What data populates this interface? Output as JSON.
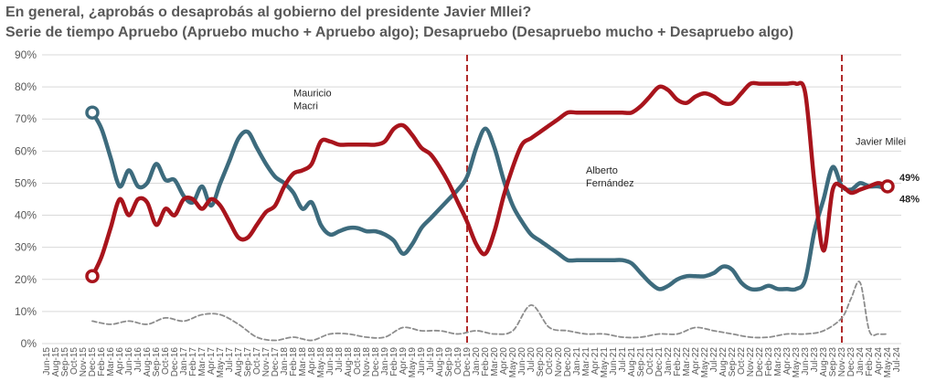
{
  "title": "En general, ¿aprobás o desaprobás al gobierno del presidente Javier MIlei?",
  "subtitle": "Serie de tiempo Apruebo (Apruebo mucho + Apruebo algo); Desapruebo (Desapruebo mucho + Desapruebo algo)",
  "colors": {
    "apruebo": "#3d6b7d",
    "desapruebo": "#a8141c",
    "nsnc": "#8c8c8c",
    "marker": "#a8141c"
  },
  "chart_data": {
    "type": "line",
    "ylim": [
      0,
      90
    ],
    "yticks": [
      "0%",
      "10%",
      "20%",
      "30%",
      "40%",
      "50%",
      "60%",
      "70%",
      "80%",
      "90%"
    ],
    "x_labels": [
      "Jun-15",
      "Aug-15",
      "Sep-15",
      "Oct-15",
      "Nov-15",
      "Dec-15",
      "Feb-16",
      "Mar-16",
      "Apr-16",
      "Jun-16",
      "Jul-16",
      "Aug-16",
      "Sep-16",
      "Oct-16",
      "Dec-16",
      "Jan-17",
      "Feb-17",
      "Mar-17",
      "Apr-17",
      "May-17",
      "Jul-17",
      "Aug-17",
      "Sep-17",
      "Oct-17",
      "Nov-17",
      "Dec-17",
      "Jan-18",
      "Feb-18",
      "Mar-18",
      "Apr-18",
      "May-18",
      "Jun-18",
      "Jul-18",
      "Aug-18",
      "Oct-18",
      "Nov-18",
      "Dec-18",
      "Jan-19",
      "Feb-19",
      "Apr-19",
      "May-19",
      "Jun-19",
      "Jul-19",
      "Aug-19",
      "Sep-19",
      "Oct-19",
      "Dec-19",
      "Jan-20",
      "Feb-20",
      "Mar-20",
      "Apr-20",
      "May-20",
      "Jun-20",
      "Jul-20",
      "Sep-20",
      "Oct-20",
      "Nov-20",
      "Dec-20",
      "Jan-21",
      "Mar-21",
      "Apr-21",
      "May-21",
      "Jun-21",
      "Jul-21",
      "Aug-21",
      "Sep-21",
      "Oct-21",
      "Dec-21",
      "Jan-22",
      "Feb-22",
      "Mar-22",
      "Apr-22",
      "May-22",
      "Jul-22",
      "Aug-22",
      "Sep-22",
      "Oct-22",
      "Nov-22",
      "Dec-22",
      "Feb-23",
      "Mar-23",
      "Apr-23",
      "May-23",
      "Jun-23",
      "Jul-23",
      "Aug-23",
      "Sep-23",
      "Nov-23",
      "Dec-23",
      "Jan-24",
      "Feb-24",
      "Apr-24",
      "May-24",
      "Jul-24"
    ],
    "series": [
      {
        "key": "apruebo",
        "points": [
          [
            5,
            72
          ],
          [
            6,
            67
          ],
          [
            7,
            58
          ],
          [
            8,
            49
          ],
          [
            9,
            54
          ],
          [
            10,
            49
          ],
          [
            11,
            50
          ],
          [
            12,
            56
          ],
          [
            13,
            51
          ],
          [
            14,
            51
          ],
          [
            15,
            46
          ],
          [
            16,
            44
          ],
          [
            17,
            49
          ],
          [
            18,
            43
          ],
          [
            19,
            50
          ],
          [
            20,
            57
          ],
          [
            21,
            64
          ],
          [
            22,
            66
          ],
          [
            23,
            61
          ],
          [
            24,
            56
          ],
          [
            25,
            52
          ],
          [
            26,
            50
          ],
          [
            27,
            47
          ],
          [
            28,
            42
          ],
          [
            29,
            44
          ],
          [
            30,
            37
          ],
          [
            31,
            34
          ],
          [
            32,
            35
          ],
          [
            33,
            36
          ],
          [
            34,
            36
          ],
          [
            35,
            35
          ],
          [
            36,
            35
          ],
          [
            37,
            34
          ],
          [
            38,
            32
          ],
          [
            39,
            28
          ],
          [
            40,
            31
          ],
          [
            41,
            36
          ],
          [
            42,
            39
          ],
          [
            43,
            42
          ],
          [
            44,
            45
          ],
          [
            45,
            48
          ],
          [
            46,
            52
          ],
          [
            47,
            61
          ],
          [
            48,
            67
          ],
          [
            49,
            61
          ],
          [
            50,
            51
          ],
          [
            51,
            43
          ],
          [
            52,
            38
          ],
          [
            53,
            34
          ],
          [
            54,
            32
          ],
          [
            55,
            30
          ],
          [
            56,
            28
          ],
          [
            57,
            26
          ],
          [
            58,
            26
          ],
          [
            59,
            26
          ],
          [
            60,
            26
          ],
          [
            61,
            26
          ],
          [
            62,
            26
          ],
          [
            63,
            26
          ],
          [
            64,
            25
          ],
          [
            65,
            22
          ],
          [
            66,
            19
          ],
          [
            67,
            17
          ],
          [
            68,
            18
          ],
          [
            69,
            20
          ],
          [
            70,
            21
          ],
          [
            71,
            21
          ],
          [
            72,
            21
          ],
          [
            73,
            22
          ],
          [
            74,
            24
          ],
          [
            75,
            23
          ],
          [
            76,
            19
          ],
          [
            77,
            17
          ],
          [
            78,
            17
          ],
          [
            79,
            18
          ],
          [
            80,
            17
          ],
          [
            81,
            17
          ],
          [
            82,
            17
          ],
          [
            83,
            20
          ],
          [
            84,
            35
          ],
          [
            85,
            45
          ],
          [
            86,
            55
          ],
          [
            87,
            49
          ],
          [
            88,
            48
          ],
          [
            89,
            50
          ],
          [
            90,
            49
          ],
          [
            91,
            49
          ],
          [
            92,
            48
          ]
        ]
      },
      {
        "key": "desapruebo",
        "points": [
          [
            5,
            21
          ],
          [
            6,
            27
          ],
          [
            7,
            36
          ],
          [
            8,
            45
          ],
          [
            9,
            40
          ],
          [
            10,
            45
          ],
          [
            11,
            44
          ],
          [
            12,
            37
          ],
          [
            13,
            42
          ],
          [
            14,
            40
          ],
          [
            15,
            45
          ],
          [
            16,
            45
          ],
          [
            17,
            42
          ],
          [
            18,
            45
          ],
          [
            19,
            43
          ],
          [
            20,
            38
          ],
          [
            21,
            33
          ],
          [
            22,
            33
          ],
          [
            23,
            37
          ],
          [
            24,
            41
          ],
          [
            25,
            43
          ],
          [
            26,
            49
          ],
          [
            27,
            53
          ],
          [
            28,
            54
          ],
          [
            29,
            56
          ],
          [
            30,
            63
          ],
          [
            31,
            63
          ],
          [
            32,
            62
          ],
          [
            33,
            62
          ],
          [
            34,
            62
          ],
          [
            35,
            62
          ],
          [
            36,
            62
          ],
          [
            37,
            63
          ],
          [
            38,
            67
          ],
          [
            39,
            68
          ],
          [
            40,
            65
          ],
          [
            41,
            61
          ],
          [
            42,
            59
          ],
          [
            43,
            55
          ],
          [
            44,
            50
          ],
          [
            45,
            44
          ],
          [
            46,
            38
          ],
          [
            47,
            31
          ],
          [
            48,
            28
          ],
          [
            49,
            35
          ],
          [
            50,
            46
          ],
          [
            51,
            55
          ],
          [
            52,
            62
          ],
          [
            53,
            64
          ],
          [
            54,
            66
          ],
          [
            55,
            68
          ],
          [
            56,
            70
          ],
          [
            57,
            72
          ],
          [
            58,
            72
          ],
          [
            59,
            72
          ],
          [
            60,
            72
          ],
          [
            61,
            72
          ],
          [
            62,
            72
          ],
          [
            63,
            72
          ],
          [
            64,
            72
          ],
          [
            65,
            74
          ],
          [
            66,
            77
          ],
          [
            67,
            80
          ],
          [
            68,
            79
          ],
          [
            69,
            76
          ],
          [
            70,
            75
          ],
          [
            71,
            77
          ],
          [
            72,
            78
          ],
          [
            73,
            77
          ],
          [
            74,
            75
          ],
          [
            75,
            75
          ],
          [
            76,
            78
          ],
          [
            77,
            81
          ],
          [
            78,
            81
          ],
          [
            79,
            81
          ],
          [
            80,
            81
          ],
          [
            81,
            81
          ],
          [
            82,
            81
          ],
          [
            83,
            78
          ],
          [
            84,
            50
          ],
          [
            85,
            29
          ],
          [
            86,
            48
          ],
          [
            87,
            49
          ],
          [
            88,
            47
          ],
          [
            89,
            48
          ],
          [
            90,
            49
          ],
          [
            91,
            50
          ],
          [
            92,
            49
          ]
        ]
      },
      {
        "key": "nsnc",
        "points": [
          [
            5,
            7
          ],
          [
            7,
            6
          ],
          [
            9,
            7
          ],
          [
            11,
            6
          ],
          [
            13,
            8
          ],
          [
            15,
            7
          ],
          [
            17,
            9
          ],
          [
            19,
            9
          ],
          [
            21,
            6
          ],
          [
            23,
            2
          ],
          [
            25,
            1
          ],
          [
            27,
            2
          ],
          [
            29,
            1
          ],
          [
            31,
            3
          ],
          [
            33,
            3
          ],
          [
            35,
            2
          ],
          [
            37,
            2
          ],
          [
            39,
            5
          ],
          [
            41,
            4
          ],
          [
            43,
            4
          ],
          [
            45,
            3
          ],
          [
            47,
            4
          ],
          [
            49,
            3
          ],
          [
            51,
            4
          ],
          [
            53,
            12
          ],
          [
            55,
            5
          ],
          [
            57,
            4
          ],
          [
            59,
            3
          ],
          [
            61,
            3
          ],
          [
            63,
            2
          ],
          [
            65,
            2
          ],
          [
            67,
            3
          ],
          [
            69,
            3
          ],
          [
            71,
            5
          ],
          [
            73,
            4
          ],
          [
            75,
            3
          ],
          [
            77,
            2
          ],
          [
            79,
            2
          ],
          [
            81,
            3
          ],
          [
            83,
            3
          ],
          [
            85,
            4
          ],
          [
            87,
            8
          ],
          [
            88,
            14
          ],
          [
            89,
            19
          ],
          [
            90,
            4
          ],
          [
            91,
            3
          ],
          [
            92,
            3
          ]
        ]
      }
    ],
    "vlines": [
      46,
      87
    ],
    "annotations": [
      {
        "text_lines": [
          "Mauricio",
          "Macri"
        ],
        "x": 27,
        "y": 77
      },
      {
        "text_lines": [
          "Alberto",
          "Fernández"
        ],
        "x": 59,
        "y": 53
      },
      {
        "text_lines": [
          "Javier Milei"
        ],
        "x": 88.5,
        "y": 62
      }
    ],
    "end_labels": {
      "desapruebo": "49%",
      "apruebo": "48%"
    }
  }
}
